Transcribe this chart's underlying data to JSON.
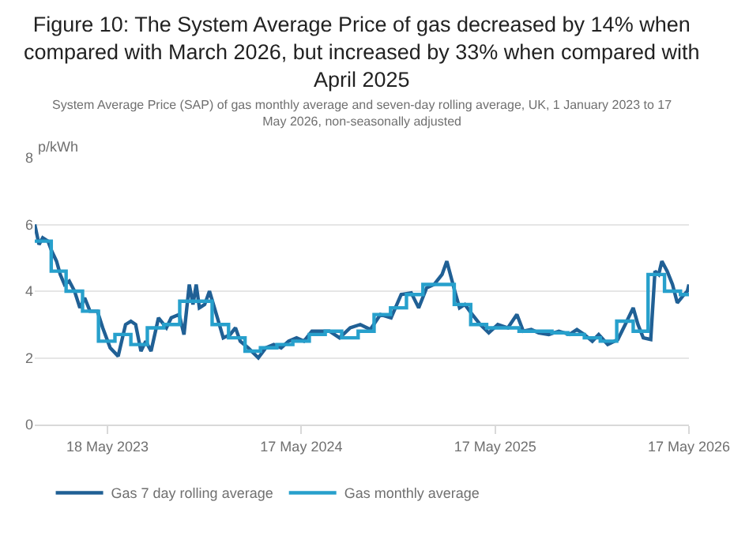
{
  "chart_data": {
    "type": "line",
    "title": "Figure 10: The System Average Price of gas decreased by 14% when compared with March 2026, but increased by 33% when compared with April 2025",
    "subtitle": "System Average Price (SAP) of gas monthly average and seven-day rolling average, UK, 1 January 2023 to 17 May 2026, non-seasonally adjusted",
    "ylabel": "p/kWh",
    "xlim": [
      "2023-01-01",
      "2026-05-17"
    ],
    "xticks": [
      {
        "value": "2023-05-18",
        "label": "18 May 2023"
      },
      {
        "value": "2024-05-17",
        "label": "17 May 2024"
      },
      {
        "value": "2025-05-17",
        "label": "17 May 2025"
      },
      {
        "value": "2026-05-17",
        "label": "17 May 2026"
      }
    ],
    "ylim": [
      0,
      8
    ],
    "yticks": [
      0,
      2,
      4,
      6,
      8
    ],
    "grid": "y",
    "legend": "bottom",
    "line_style": "solid",
    "marker": "none",
    "series": [
      {
        "name": "Gas 7 day rolling average",
        "color": "#206095",
        "x": [
          "2023-01-01",
          "2023-01-09",
          "2023-01-16",
          "2023-01-26",
          "2023-02-02",
          "2023-02-11",
          "2023-02-18",
          "2023-02-26",
          "2023-03-07",
          "2023-03-17",
          "2023-03-27",
          "2023-04-05",
          "2023-04-15",
          "2023-04-29",
          "2023-05-09",
          "2023-05-23",
          "2023-06-07",
          "2023-06-21",
          "2023-07-01",
          "2023-07-10",
          "2023-07-20",
          "2023-07-29",
          "2023-08-08",
          "2023-08-22",
          "2023-09-06",
          "2023-09-15",
          "2023-09-30",
          "2023-10-09",
          "2023-10-19",
          "2023-10-26",
          "2023-11-01",
          "2023-11-07",
          "2023-11-17",
          "2023-11-26",
          "2023-12-11",
          "2023-12-22",
          "2024-01-04",
          "2024-01-14",
          "2024-01-23",
          "2024-02-07",
          "2024-02-26",
          "2024-03-11",
          "2024-03-26",
          "2024-04-09",
          "2024-04-23",
          "2024-05-08",
          "2024-05-22",
          "2024-06-06",
          "2024-06-20",
          "2024-07-09",
          "2024-07-28",
          "2024-08-17",
          "2024-09-05",
          "2024-09-24",
          "2024-10-13",
          "2024-11-02",
          "2024-11-21",
          "2024-12-10",
          "2024-12-24",
          "2025-01-08",
          "2025-01-22",
          "2025-02-06",
          "2025-02-15",
          "2025-03-02",
          "2025-03-11",
          "2025-03-21",
          "2025-04-04",
          "2025-04-19",
          "2025-05-05",
          "2025-05-22",
          "2025-06-10",
          "2025-06-27",
          "2025-07-09",
          "2025-07-24",
          "2025-08-07",
          "2025-08-26",
          "2025-09-14",
          "2025-10-04",
          "2025-10-18",
          "2025-11-01",
          "2025-11-16",
          "2025-11-28",
          "2025-12-15",
          "2026-01-03",
          "2026-01-17",
          "2026-02-01",
          "2026-02-10",
          "2026-02-20",
          "2026-03-06",
          "2026-03-14",
          "2026-03-21",
          "2026-03-27",
          "2026-04-06",
          "2026-04-16",
          "2026-04-25",
          "2026-05-08",
          "2026-05-14",
          "2026-05-17"
        ],
        "values": [
          6.0,
          5.4,
          5.6,
          5.5,
          5.2,
          4.9,
          4.5,
          4.2,
          4.3,
          4.0,
          3.5,
          3.8,
          3.4,
          3.4,
          2.9,
          2.3,
          2.05,
          3.0,
          3.1,
          3.0,
          2.2,
          2.5,
          2.2,
          3.2,
          2.9,
          3.2,
          3.3,
          2.7,
          4.2,
          3.6,
          4.2,
          3.5,
          3.6,
          4.0,
          3.2,
          2.6,
          2.7,
          2.9,
          2.5,
          2.3,
          2.0,
          2.3,
          2.4,
          2.3,
          2.5,
          2.6,
          2.5,
          2.8,
          2.8,
          2.8,
          2.6,
          2.9,
          3.0,
          2.85,
          3.3,
          3.2,
          3.9,
          3.95,
          3.5,
          4.1,
          4.2,
          4.5,
          4.9,
          4.0,
          3.5,
          3.6,
          3.3,
          3.0,
          2.75,
          3.0,
          2.9,
          3.3,
          2.8,
          2.85,
          2.75,
          2.7,
          2.8,
          2.7,
          2.85,
          2.7,
          2.5,
          2.7,
          2.4,
          2.55,
          3.0,
          3.5,
          3.0,
          2.6,
          2.55,
          4.6,
          4.5,
          4.9,
          4.6,
          4.2,
          3.65,
          3.9,
          4.0,
          4.2
        ]
      },
      {
        "name": "Gas monthly average",
        "color": "#27a0cc",
        "type": "step",
        "x": [
          "2023-01-01",
          "2023-02-01",
          "2023-03-01",
          "2023-04-01",
          "2023-05-01",
          "2023-06-01",
          "2023-07-01",
          "2023-08-01",
          "2023-09-01",
          "2023-10-01",
          "2023-11-01",
          "2023-12-01",
          "2024-01-01",
          "2024-02-01",
          "2024-03-01",
          "2024-04-01",
          "2024-05-01",
          "2024-06-01",
          "2024-07-01",
          "2024-08-01",
          "2024-09-01",
          "2024-10-01",
          "2024-11-01",
          "2024-12-01",
          "2025-01-01",
          "2025-02-01",
          "2025-03-01",
          "2025-04-01",
          "2025-05-01",
          "2025-06-01",
          "2025-07-01",
          "2025-08-01",
          "2025-09-01",
          "2025-10-01",
          "2025-11-01",
          "2025-12-01",
          "2026-01-01",
          "2026-02-01",
          "2026-03-01",
          "2026-04-01",
          "2026-05-01",
          "2026-05-17"
        ],
        "values": [
          5.5,
          4.6,
          4.0,
          3.4,
          2.5,
          2.7,
          2.4,
          2.9,
          3.0,
          3.7,
          3.7,
          3.0,
          2.6,
          2.2,
          2.3,
          2.4,
          2.5,
          2.7,
          2.8,
          2.6,
          2.8,
          3.3,
          3.5,
          3.9,
          4.2,
          4.2,
          3.6,
          3.0,
          2.9,
          2.9,
          2.8,
          2.8,
          2.75,
          2.7,
          2.6,
          2.5,
          3.1,
          2.8,
          4.5,
          4.0,
          3.9,
          3.9
        ]
      }
    ]
  }
}
